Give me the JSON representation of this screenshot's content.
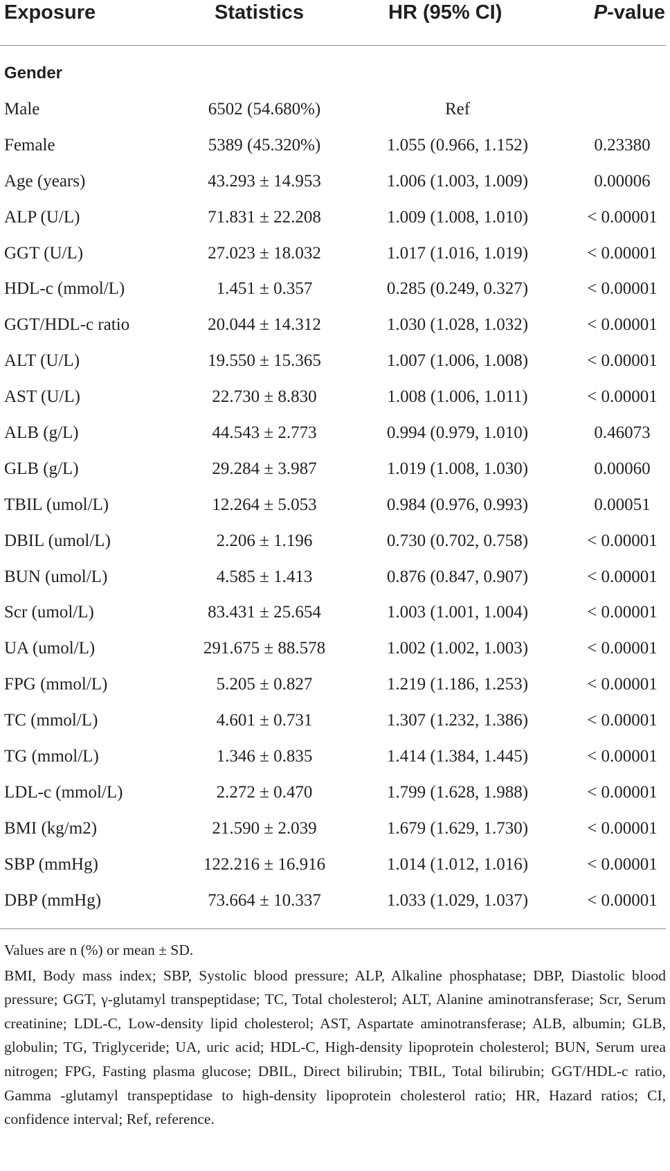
{
  "header": {
    "exposure": "Exposure",
    "statistics": "Statistics",
    "hr": "HR (95% CI)",
    "p_italic": "P",
    "p_rest": "-value"
  },
  "group": "Gender",
  "rows": [
    {
      "label": "Male",
      "stat": "6502 (54.680%)",
      "hr": "Ref",
      "p": ""
    },
    {
      "label": "Female",
      "stat": "5389 (45.320%)",
      "hr": "1.055 (0.966, 1.152)",
      "p": "0.23380"
    },
    {
      "label": "Age (years)",
      "stat": "43.293 ± 14.953",
      "hr": "1.006 (1.003, 1.009)",
      "p": "0.00006"
    },
    {
      "label": "ALP (U/L)",
      "stat": "71.831 ± 22.208",
      "hr": "1.009 (1.008, 1.010)",
      "p": "< 0.00001"
    },
    {
      "label": "GGT (U/L)",
      "stat": "27.023 ± 18.032",
      "hr": "1.017 (1.016, 1.019)",
      "p": "< 0.00001"
    },
    {
      "label": "HDL-c (mmol/L)",
      "stat": "1.451 ± 0.357",
      "hr": "0.285 (0.249, 0.327)",
      "p": "< 0.00001"
    },
    {
      "label": "GGT/HDL-c ratio",
      "stat": "20.044 ± 14.312",
      "hr": "1.030 (1.028, 1.032)",
      "p": "< 0.00001"
    },
    {
      "label": "ALT (U/L)",
      "stat": "19.550 ± 15.365",
      "hr": "1.007 (1.006, 1.008)",
      "p": "< 0.00001"
    },
    {
      "label": "AST (U/L)",
      "stat": "22.730 ± 8.830",
      "hr": "1.008 (1.006, 1.011)",
      "p": "< 0.00001"
    },
    {
      "label": "ALB (g/L)",
      "stat": "44.543 ± 2.773",
      "hr": "0.994 (0.979, 1.010)",
      "p": "0.46073"
    },
    {
      "label": "GLB (g/L)",
      "stat": "29.284 ± 3.987",
      "hr": "1.019 (1.008, 1.030)",
      "p": "0.00060"
    },
    {
      "label": "TBIL (umol/L)",
      "stat": "12.264 ± 5.053",
      "hr": "0.984 (0.976, 0.993)",
      "p": "0.00051"
    },
    {
      "label": "DBIL (umol/L)",
      "stat": "2.206 ± 1.196",
      "hr": "0.730 (0.702, 0.758)",
      "p": "< 0.00001"
    },
    {
      "label": "BUN (umol/L)",
      "stat": "4.585 ± 1.413",
      "hr": "0.876 (0.847, 0.907)",
      "p": "< 0.00001"
    },
    {
      "label": "Scr (umol/L)",
      "stat": "83.431 ± 25.654",
      "hr": "1.003 (1.001, 1.004)",
      "p": "< 0.00001"
    },
    {
      "label": "UA (umol/L)",
      "stat": "291.675 ± 88.578",
      "hr": "1.002 (1.002, 1.003)",
      "p": "< 0.00001"
    },
    {
      "label": "FPG (mmol/L)",
      "stat": "5.205 ± 0.827",
      "hr": "1.219 (1.186, 1.253)",
      "p": "< 0.00001"
    },
    {
      "label": "TC (mmol/L)",
      "stat": "4.601 ± 0.731",
      "hr": "1.307 (1.232, 1.386)",
      "p": "< 0.00001"
    },
    {
      "label": "TG (mmol/L)",
      "stat": "1.346 ± 0.835",
      "hr": "1.414 (1.384, 1.445)",
      "p": "< 0.00001"
    },
    {
      "label": "LDL-c (mmol/L)",
      "stat": "2.272 ± 0.470",
      "hr": "1.799 (1.628, 1.988)",
      "p": "< 0.00001"
    },
    {
      "label": "BMI (kg/m2)",
      "stat": "21.590 ± 2.039",
      "hr": "1.679 (1.629, 1.730)",
      "p": "< 0.00001"
    },
    {
      "label": "SBP (mmHg)",
      "stat": "122.216 ± 16.916",
      "hr": "1.014 (1.012, 1.016)",
      "p": "< 0.00001"
    },
    {
      "label": "DBP (mmHg)",
      "stat": "73.664 ± 10.337",
      "hr": "1.033 (1.029, 1.037)",
      "p": "< 0.00001"
    }
  ],
  "footnotes": {
    "values_note": "Values are n (%) or mean ± SD.",
    "abbreviations": "BMI, Body mass index; SBP, Systolic blood pressure; ALP, Alkaline phosphatase; DBP, Diastolic blood pressure; GGT, γ-glutamyl transpeptidase; TC, Total cholesterol; ALT, Alanine aminotransferase; Scr, Serum creatinine; LDL-C, Low-density lipid cholesterol; AST, Aspartate aminotransferase; ALB, albumin; GLB, globulin; TG, Triglyceride; UA, uric acid; HDL-C, High-density lipoprotein cholesterol; BUN, Serum urea nitrogen; FPG, Fasting plasma glucose; DBIL, Direct bilirubin; TBIL, Total bilirubin; GGT/HDL-c ratio, Gamma -glutamyl transpeptidase to high-density lipoprotein cholesterol ratio; HR, Hazard ratios; CI, confidence interval; Ref, reference."
  }
}
